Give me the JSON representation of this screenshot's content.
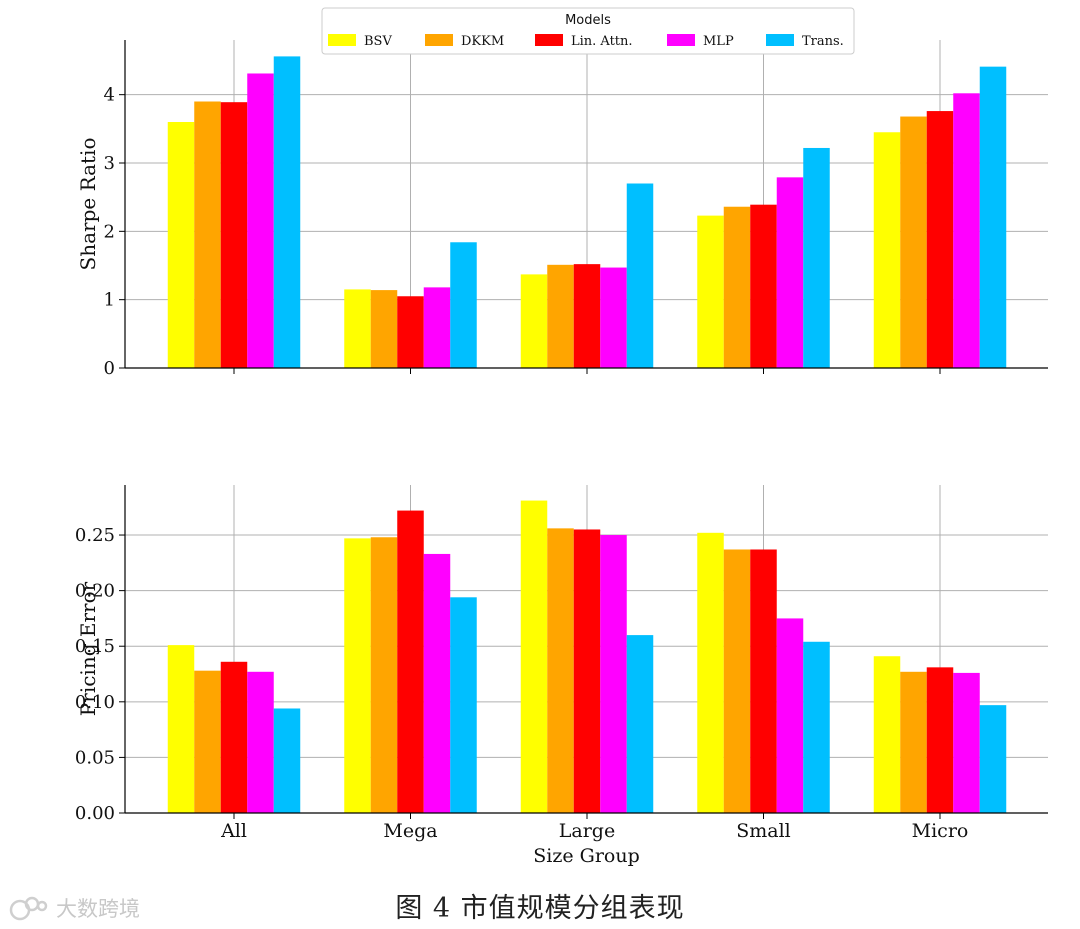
{
  "figure": {
    "caption": "图 4 市值规模分组表现",
    "watermark": "大数跨境"
  },
  "legend": {
    "title": "Models"
  },
  "colors": {
    "BSV": "#ffff00",
    "DKKM": "#ffa500",
    "Lin. Attn.": "#ff0000",
    "MLP": "#ff00ff",
    "Trans.": "#00bfff"
  },
  "chart_data": [
    {
      "type": "bar",
      "title": "",
      "xlabel": "",
      "ylabel": "Sharpe Ratio",
      "categories": [
        "All",
        "Mega",
        "Large",
        "Small",
        "Micro"
      ],
      "ylim": [
        0,
        4.8
      ],
      "yticks": [
        "0",
        "1",
        "2",
        "3",
        "4"
      ],
      "grid": true,
      "legend": "top-center",
      "series": [
        {
          "name": "BSV",
          "values": [
            3.6,
            1.15,
            1.37,
            2.23,
            3.45
          ]
        },
        {
          "name": "DKKM",
          "values": [
            3.9,
            1.14,
            1.51,
            2.36,
            3.68
          ]
        },
        {
          "name": "Lin. Attn.",
          "values": [
            3.89,
            1.05,
            1.52,
            2.39,
            3.76
          ]
        },
        {
          "name": "MLP",
          "values": [
            4.31,
            1.18,
            1.47,
            2.79,
            4.02
          ]
        },
        {
          "name": "Trans.",
          "values": [
            4.56,
            1.84,
            2.7,
            3.22,
            4.41
          ]
        }
      ]
    },
    {
      "type": "bar",
      "title": "",
      "xlabel": "Size Group",
      "ylabel": "Pricing Error",
      "categories": [
        "All",
        "Mega",
        "Large",
        "Small",
        "Micro"
      ],
      "ylim": [
        0,
        0.295
      ],
      "yticks": [
        "0.00",
        "0.05",
        "0.10",
        "0.15",
        "0.20",
        "0.25"
      ],
      "grid": true,
      "series": [
        {
          "name": "BSV",
          "values": [
            0.151,
            0.247,
            0.281,
            0.252,
            0.141
          ]
        },
        {
          "name": "DKKM",
          "values": [
            0.128,
            0.248,
            0.256,
            0.237,
            0.127
          ]
        },
        {
          "name": "Lin. Attn.",
          "values": [
            0.136,
            0.272,
            0.255,
            0.237,
            0.131
          ]
        },
        {
          "name": "MLP",
          "values": [
            0.127,
            0.233,
            0.25,
            0.175,
            0.126
          ]
        },
        {
          "name": "Trans.",
          "values": [
            0.094,
            0.194,
            0.16,
            0.154,
            0.097
          ]
        }
      ]
    }
  ]
}
